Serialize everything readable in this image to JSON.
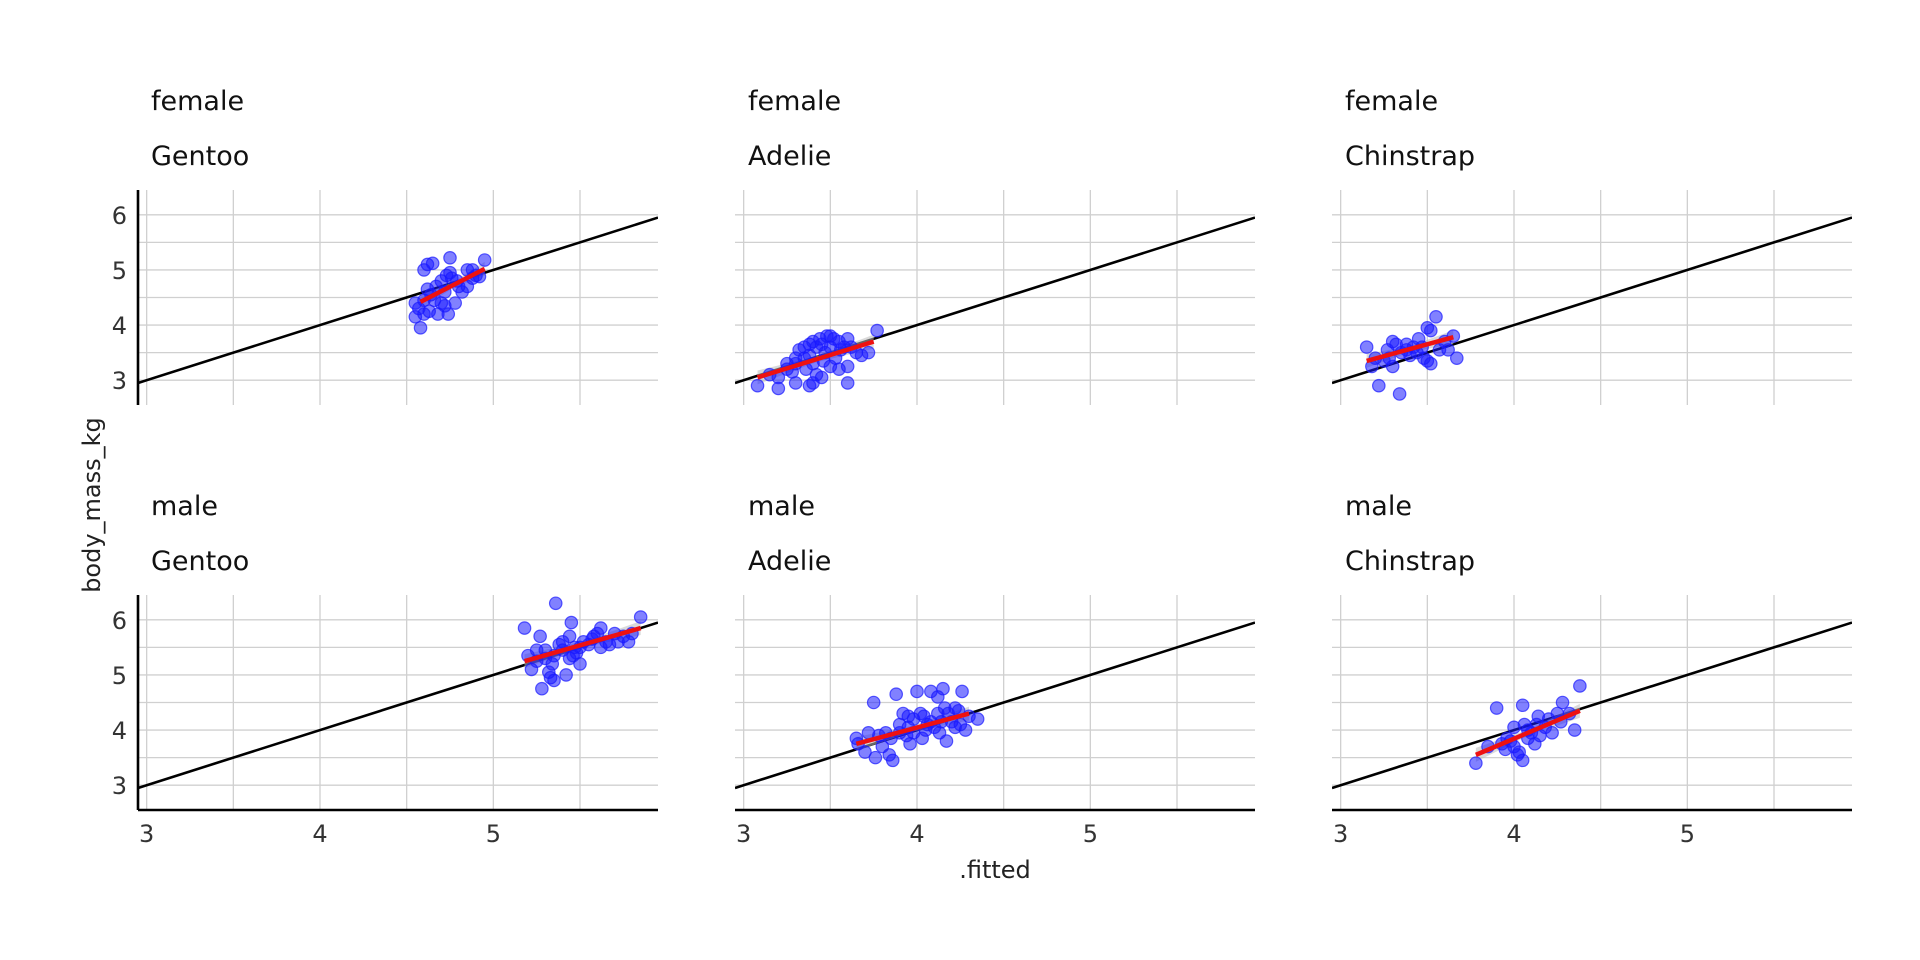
{
  "chart_data": {
    "type": "scatter",
    "xlabel": ".fitted",
    "ylabel": "body_mass_kg",
    "xlim": [
      2.95,
      5.95
    ],
    "ylim": [
      2.55,
      6.45
    ],
    "x_ticks": [
      3,
      4,
      5
    ],
    "y_ticks": [
      3,
      4,
      5,
      6
    ],
    "grid": true,
    "reference_line": {
      "slope": 1,
      "intercept": 0
    },
    "colors": {
      "points": "#1a1aff",
      "fit_line": "#ee1111",
      "ribbon": "#bbbbbb",
      "reference": "#000000",
      "grid": "#d0d0d0",
      "axis": "#000000"
    },
    "facets": [
      {
        "sex": "female",
        "species": "Gentoo",
        "fit": {
          "x": [
            4.58,
            4.95
          ],
          "y": [
            4.42,
            5.02
          ]
        },
        "points": [
          [
            4.6,
            5.0
          ],
          [
            4.62,
            5.1
          ],
          [
            4.65,
            5.12
          ],
          [
            4.75,
            5.22
          ],
          [
            4.85,
            5.0
          ],
          [
            4.95,
            5.18
          ],
          [
            4.92,
            4.88
          ],
          [
            4.88,
            5.0
          ],
          [
            4.55,
            4.4
          ],
          [
            4.57,
            4.3
          ],
          [
            4.6,
            4.2
          ],
          [
            4.63,
            4.25
          ],
          [
            4.66,
            4.45
          ],
          [
            4.68,
            4.2
          ],
          [
            4.7,
            4.4
          ],
          [
            4.72,
            4.35
          ],
          [
            4.74,
            4.2
          ],
          [
            4.58,
            3.95
          ],
          [
            4.55,
            4.15
          ],
          [
            4.78,
            4.4
          ],
          [
            4.8,
            4.7
          ],
          [
            4.82,
            4.6
          ],
          [
            4.85,
            4.7
          ],
          [
            4.67,
            4.7
          ],
          [
            4.7,
            4.8
          ],
          [
            4.73,
            4.9
          ],
          [
            4.76,
            4.85
          ],
          [
            4.79,
            4.8
          ],
          [
            4.62,
            4.65
          ],
          [
            4.64,
            4.55
          ],
          [
            4.88,
            4.85
          ],
          [
            4.9,
            4.9
          ],
          [
            4.6,
            4.45
          ],
          [
            4.72,
            4.6
          ],
          [
            4.75,
            4.95
          ]
        ]
      },
      {
        "sex": "female",
        "species": "Adelie",
        "fit": {
          "x": [
            3.08,
            3.75
          ],
          "y": [
            3.05,
            3.7
          ]
        },
        "points": [
          [
            3.08,
            2.9
          ],
          [
            3.2,
            2.85
          ],
          [
            3.3,
            2.95
          ],
          [
            3.38,
            2.9
          ],
          [
            3.4,
            2.95
          ],
          [
            3.6,
            2.95
          ],
          [
            3.15,
            3.1
          ],
          [
            3.2,
            3.05
          ],
          [
            3.25,
            3.2
          ],
          [
            3.28,
            3.15
          ],
          [
            3.3,
            3.3
          ],
          [
            3.32,
            3.55
          ],
          [
            3.35,
            3.4
          ],
          [
            3.38,
            3.45
          ],
          [
            3.4,
            3.7
          ],
          [
            3.42,
            3.6
          ],
          [
            3.45,
            3.65
          ],
          [
            3.47,
            3.5
          ],
          [
            3.5,
            3.8
          ],
          [
            3.52,
            3.75
          ],
          [
            3.55,
            3.7
          ],
          [
            3.48,
            3.8
          ],
          [
            3.44,
            3.75
          ],
          [
            3.4,
            3.3
          ],
          [
            3.36,
            3.2
          ],
          [
            3.46,
            3.35
          ],
          [
            3.5,
            3.25
          ],
          [
            3.53,
            3.4
          ],
          [
            3.56,
            3.55
          ],
          [
            3.58,
            3.6
          ],
          [
            3.6,
            3.25
          ],
          [
            3.62,
            3.6
          ],
          [
            3.65,
            3.5
          ],
          [
            3.68,
            3.45
          ],
          [
            3.72,
            3.5
          ],
          [
            3.77,
            3.9
          ],
          [
            3.3,
            3.4
          ],
          [
            3.35,
            3.6
          ],
          [
            3.42,
            3.1
          ],
          [
            3.55,
            3.2
          ],
          [
            3.25,
            3.3
          ],
          [
            3.6,
            3.75
          ],
          [
            3.45,
            3.05
          ],
          [
            3.38,
            3.65
          ],
          [
            3.5,
            3.6
          ]
        ]
      },
      {
        "sex": "female",
        "species": "Chinstrap",
        "fit": {
          "x": [
            3.15,
            3.65
          ],
          "y": [
            3.35,
            3.78
          ]
        },
        "points": [
          [
            3.15,
            3.6
          ],
          [
            3.18,
            3.25
          ],
          [
            3.2,
            3.4
          ],
          [
            3.22,
            2.9
          ],
          [
            3.25,
            3.35
          ],
          [
            3.28,
            3.4
          ],
          [
            3.3,
            3.7
          ],
          [
            3.32,
            3.65
          ],
          [
            3.35,
            3.5
          ],
          [
            3.34,
            2.75
          ],
          [
            3.38,
            3.55
          ],
          [
            3.4,
            3.45
          ],
          [
            3.42,
            3.6
          ],
          [
            3.45,
            3.75
          ],
          [
            3.47,
            3.6
          ],
          [
            3.48,
            3.4
          ],
          [
            3.5,
            3.35
          ],
          [
            3.52,
            3.9
          ],
          [
            3.55,
            4.15
          ],
          [
            3.57,
            3.55
          ],
          [
            3.6,
            3.7
          ],
          [
            3.62,
            3.55
          ],
          [
            3.65,
            3.8
          ],
          [
            3.67,
            3.4
          ],
          [
            3.3,
            3.25
          ],
          [
            3.52,
            3.3
          ],
          [
            3.44,
            3.5
          ],
          [
            3.38,
            3.65
          ],
          [
            3.5,
            3.95
          ],
          [
            3.27,
            3.55
          ]
        ]
      },
      {
        "sex": "male",
        "species": "Gentoo",
        "fit": {
          "x": [
            5.18,
            5.85
          ],
          "y": [
            5.25,
            5.85
          ]
        },
        "points": [
          [
            5.18,
            5.85
          ],
          [
            5.2,
            5.35
          ],
          [
            5.22,
            5.1
          ],
          [
            5.25,
            5.25
          ],
          [
            5.27,
            5.7
          ],
          [
            5.28,
            4.75
          ],
          [
            5.3,
            5.45
          ],
          [
            5.32,
            5.05
          ],
          [
            5.33,
            4.95
          ],
          [
            5.35,
            5.35
          ],
          [
            5.36,
            6.3
          ],
          [
            5.38,
            5.55
          ],
          [
            5.4,
            5.45
          ],
          [
            5.42,
            5.0
          ],
          [
            5.44,
            5.7
          ],
          [
            5.45,
            5.95
          ],
          [
            5.47,
            5.5
          ],
          [
            5.48,
            5.4
          ],
          [
            5.5,
            5.2
          ],
          [
            5.52,
            5.6
          ],
          [
            5.55,
            5.55
          ],
          [
            5.57,
            5.65
          ],
          [
            5.6,
            5.75
          ],
          [
            5.62,
            5.5
          ],
          [
            5.65,
            5.6
          ],
          [
            5.67,
            5.55
          ],
          [
            5.7,
            5.75
          ],
          [
            5.72,
            5.6
          ],
          [
            5.75,
            5.7
          ],
          [
            5.8,
            5.75
          ],
          [
            5.85,
            6.05
          ],
          [
            5.3,
            5.3
          ],
          [
            5.34,
            5.2
          ],
          [
            5.4,
            5.6
          ],
          [
            5.46,
            5.35
          ],
          [
            5.58,
            5.7
          ],
          [
            5.78,
            5.6
          ],
          [
            5.25,
            5.45
          ],
          [
            5.5,
            5.5
          ],
          [
            5.62,
            5.85
          ],
          [
            5.35,
            4.9
          ],
          [
            5.44,
            5.3
          ]
        ]
      },
      {
        "sex": "male",
        "species": "Adelie",
        "fit": {
          "x": [
            3.65,
            4.3
          ],
          "y": [
            3.75,
            4.3
          ]
        },
        "points": [
          [
            3.65,
            3.85
          ],
          [
            3.66,
            3.75
          ],
          [
            3.7,
            3.6
          ],
          [
            3.72,
            3.95
          ],
          [
            3.75,
            4.5
          ],
          [
            3.76,
            3.5
          ],
          [
            3.8,
            3.7
          ],
          [
            3.82,
            3.95
          ],
          [
            3.84,
            3.55
          ],
          [
            3.85,
            3.85
          ],
          [
            3.86,
            3.45
          ],
          [
            3.88,
            4.65
          ],
          [
            3.9,
            4.1
          ],
          [
            3.92,
            4.3
          ],
          [
            3.94,
            3.9
          ],
          [
            3.95,
            4.05
          ],
          [
            3.96,
            3.75
          ],
          [
            3.98,
            3.95
          ],
          [
            4.0,
            4.7
          ],
          [
            4.02,
            4.3
          ],
          [
            4.03,
            3.85
          ],
          [
            4.05,
            4.0
          ],
          [
            4.06,
            4.1
          ],
          [
            4.08,
            4.7
          ],
          [
            4.1,
            4.05
          ],
          [
            4.12,
            4.3
          ],
          [
            4.13,
            3.95
          ],
          [
            4.15,
            4.75
          ],
          [
            4.16,
            4.4
          ],
          [
            4.17,
            3.8
          ],
          [
            4.2,
            4.15
          ],
          [
            4.22,
            4.05
          ],
          [
            4.24,
            4.35
          ],
          [
            4.25,
            4.1
          ],
          [
            4.26,
            4.7
          ],
          [
            4.28,
            4.0
          ],
          [
            4.3,
            4.25
          ],
          [
            4.35,
            4.2
          ],
          [
            3.78,
            3.9
          ],
          [
            3.98,
            4.2
          ],
          [
            4.18,
            4.3
          ],
          [
            4.04,
            4.25
          ],
          [
            3.9,
            3.95
          ],
          [
            4.14,
            4.15
          ],
          [
            4.22,
            4.4
          ],
          [
            3.95,
            4.25
          ],
          [
            4.08,
            4.15
          ],
          [
            4.12,
            4.6
          ]
        ]
      },
      {
        "sex": "male",
        "species": "Chinstrap",
        "fit": {
          "x": [
            3.78,
            4.38
          ],
          "y": [
            3.55,
            4.35
          ]
        },
        "points": [
          [
            3.78,
            3.4
          ],
          [
            3.85,
            3.7
          ],
          [
            3.9,
            4.4
          ],
          [
            3.93,
            3.75
          ],
          [
            3.95,
            3.65
          ],
          [
            3.98,
            3.8
          ],
          [
            4.0,
            3.7
          ],
          [
            4.02,
            3.55
          ],
          [
            4.03,
            3.6
          ],
          [
            4.05,
            3.45
          ],
          [
            4.05,
            4.45
          ],
          [
            4.06,
            4.1
          ],
          [
            4.08,
            4.0
          ],
          [
            4.1,
            3.95
          ],
          [
            4.12,
            3.75
          ],
          [
            4.13,
            4.1
          ],
          [
            4.15,
            3.9
          ],
          [
            4.18,
            4.05
          ],
          [
            4.2,
            4.2
          ],
          [
            4.22,
            3.95
          ],
          [
            4.25,
            4.3
          ],
          [
            4.27,
            4.15
          ],
          [
            4.28,
            4.5
          ],
          [
            4.32,
            4.3
          ],
          [
            4.35,
            4.0
          ],
          [
            4.38,
            4.8
          ],
          [
            4.0,
            4.05
          ],
          [
            4.08,
            3.85
          ],
          [
            4.14,
            4.25
          ],
          [
            3.96,
            3.85
          ]
        ]
      }
    ]
  }
}
